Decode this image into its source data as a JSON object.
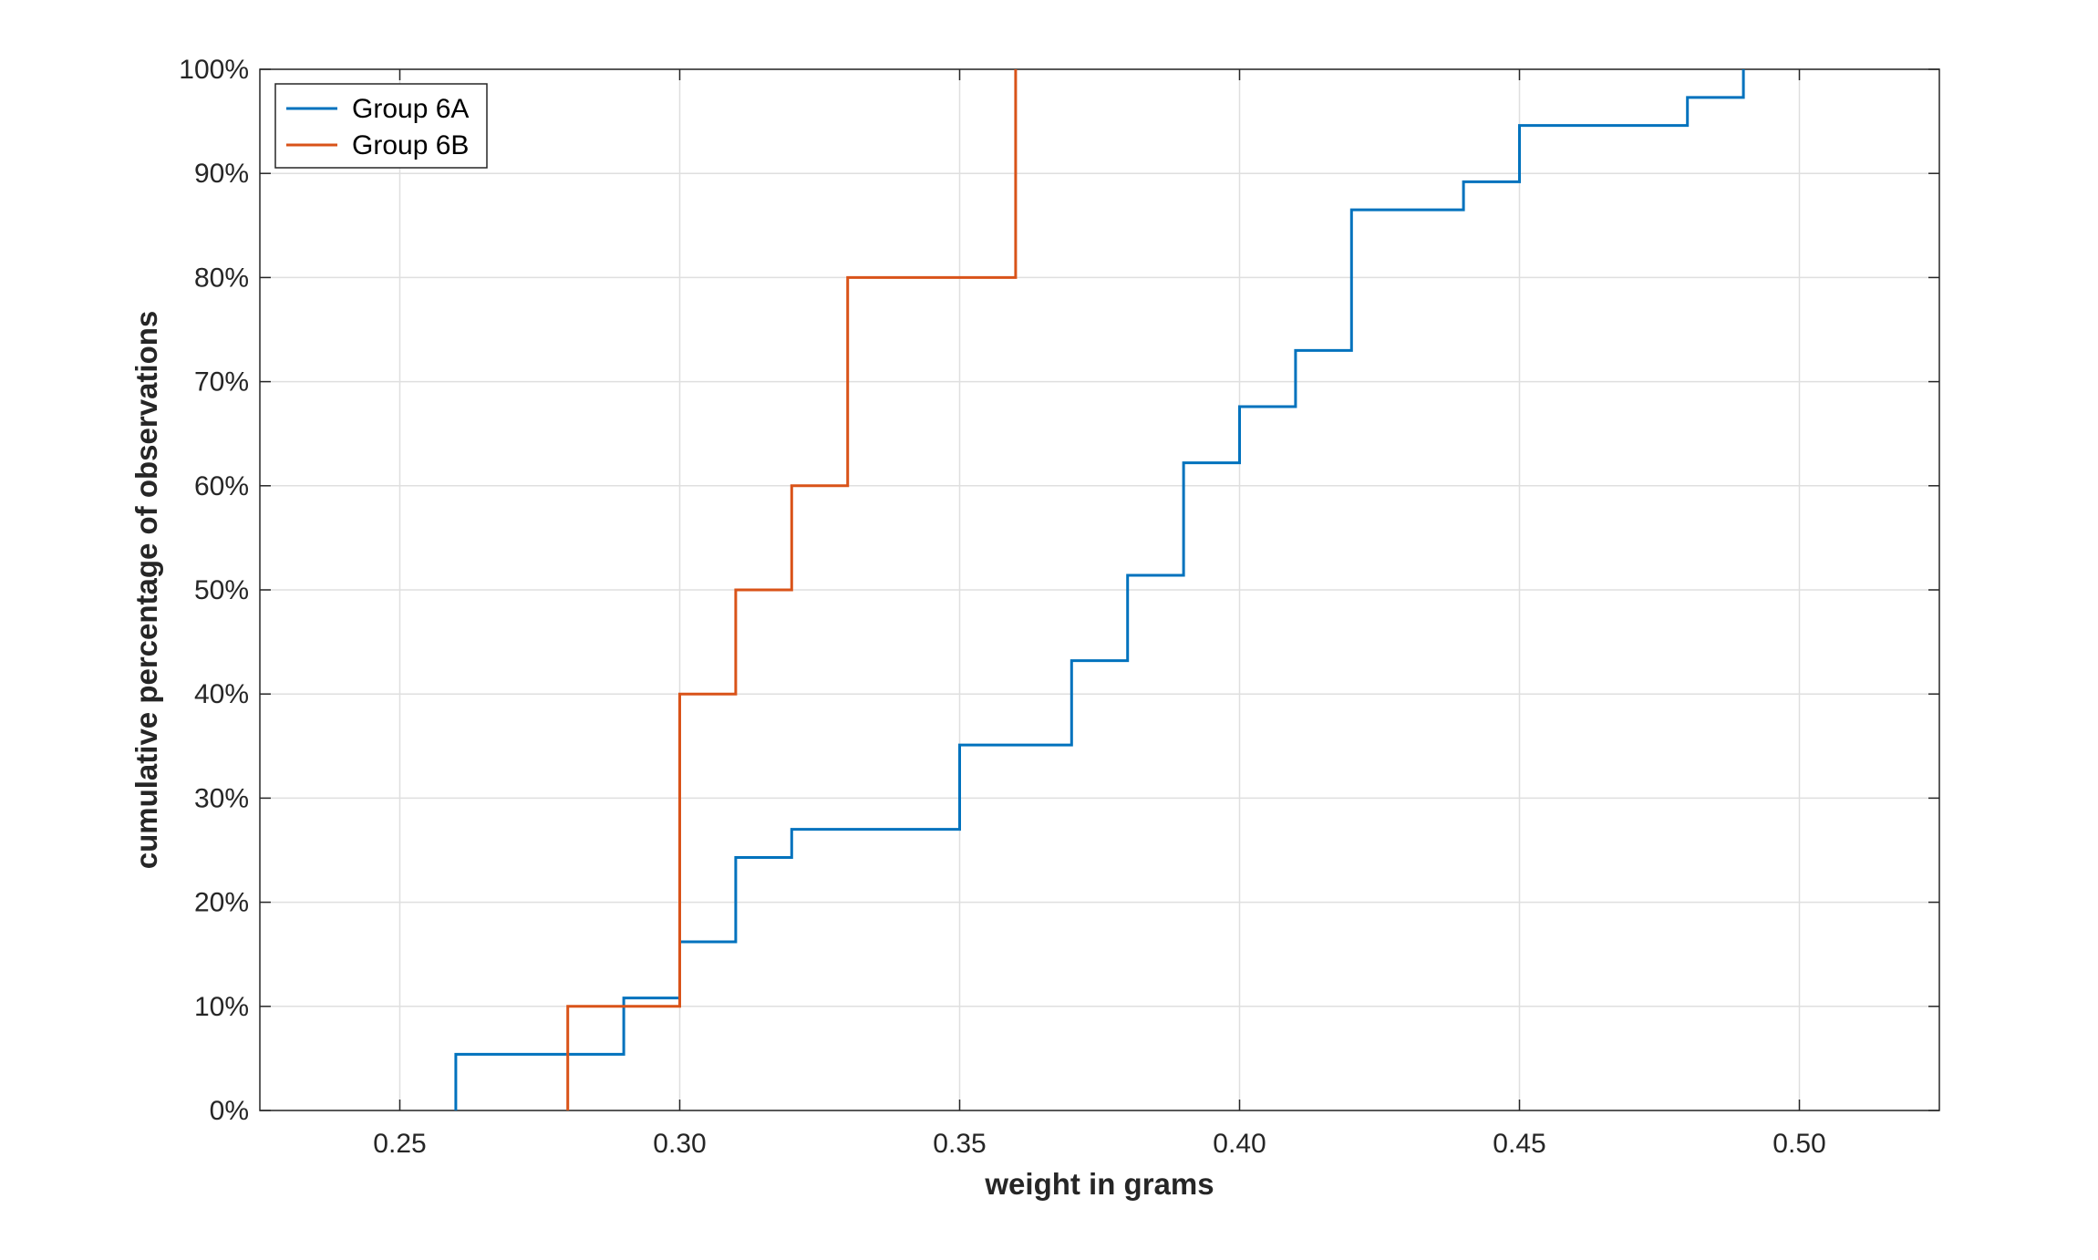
{
  "chart_data": {
    "type": "line",
    "step": true,
    "xlabel": "weight in grams",
    "ylabel": "cumulative percentage of observations",
    "xlim": [
      0.225,
      0.525
    ],
    "ylim": [
      0,
      100
    ],
    "x_ticks": [
      0.25,
      0.3,
      0.35,
      0.4,
      0.45,
      0.5
    ],
    "x_tick_labels": [
      "0.25",
      "0.30",
      "0.35",
      "0.40",
      "0.45",
      "0.50"
    ],
    "y_ticks": [
      0,
      10,
      20,
      30,
      40,
      50,
      60,
      70,
      80,
      90,
      100
    ],
    "y_tick_labels": [
      "0%",
      "10%",
      "20%",
      "30%",
      "40%",
      "50%",
      "60%",
      "70%",
      "80%",
      "90%",
      "100%"
    ],
    "grid": true,
    "legend_position": "top-left",
    "series": [
      {
        "name": "Group 6A",
        "color": "#0072BD",
        "x": [
          0.26,
          0.29,
          0.3,
          0.31,
          0.32,
          0.35,
          0.37,
          0.38,
          0.39,
          0.4,
          0.41,
          0.42,
          0.44,
          0.45,
          0.48,
          0.49
        ],
        "y": [
          5.4,
          10.8,
          16.2,
          24.3,
          27.0,
          35.1,
          43.2,
          51.4,
          62.2,
          67.6,
          73.0,
          86.5,
          89.2,
          94.6,
          97.3,
          100
        ]
      },
      {
        "name": "Group 6B",
        "color": "#D95319",
        "x": [
          0.28,
          0.3,
          0.31,
          0.32,
          0.33,
          0.36
        ],
        "y": [
          10,
          40,
          50,
          60,
          80,
          100
        ]
      }
    ]
  }
}
